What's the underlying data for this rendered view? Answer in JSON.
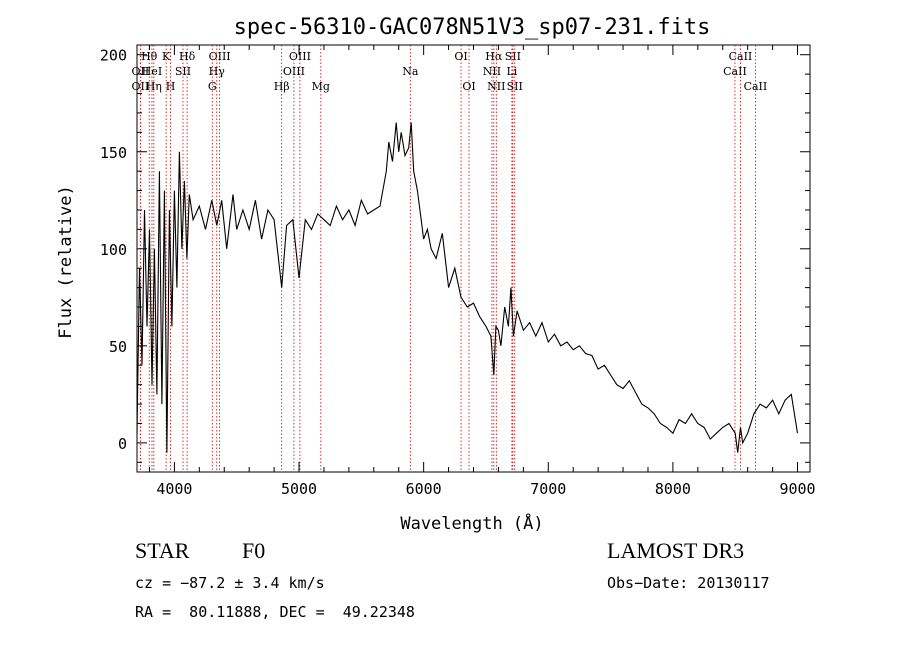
{
  "chart_data": {
    "type": "line",
    "title": "spec-56310-GAC078N51V3_sp07-231.fits",
    "xlabel": "Wavelength (Å)",
    "ylabel": "Flux (relative)",
    "xlim": [
      3700,
      9100
    ],
    "ylim": [
      -15,
      205
    ],
    "xticks": [
      4000,
      5000,
      6000,
      7000,
      8000,
      9000
    ],
    "yticks": [
      0,
      50,
      100,
      150,
      200
    ],
    "grid": false,
    "series": [
      {
        "name": "flux",
        "x": [
          3700,
          3720,
          3740,
          3760,
          3780,
          3800,
          3820,
          3840,
          3860,
          3880,
          3900,
          3920,
          3940,
          3960,
          3980,
          4000,
          4020,
          4040,
          4060,
          4080,
          4100,
          4120,
          4150,
          4200,
          4250,
          4300,
          4340,
          4380,
          4420,
          4470,
          4500,
          4550,
          4600,
          4650,
          4700,
          4750,
          4800,
          4861,
          4900,
          4950,
          5000,
          5050,
          5100,
          5150,
          5200,
          5250,
          5300,
          5350,
          5400,
          5450,
          5500,
          5550,
          5600,
          5650,
          5700,
          5720,
          5750,
          5780,
          5800,
          5820,
          5850,
          5880,
          5900,
          5920,
          5950,
          5980,
          6000,
          6030,
          6060,
          6100,
          6150,
          6200,
          6250,
          6300,
          6350,
          6400,
          6450,
          6500,
          6540,
          6563,
          6580,
          6600,
          6620,
          6650,
          6680,
          6700,
          6720,
          6750,
          6800,
          6850,
          6900,
          6950,
          7000,
          7050,
          7100,
          7150,
          7200,
          7250,
          7300,
          7350,
          7400,
          7450,
          7500,
          7550,
          7600,
          7650,
          7700,
          7750,
          7800,
          7850,
          7900,
          7950,
          8000,
          8050,
          8100,
          8150,
          8200,
          8250,
          8300,
          8350,
          8400,
          8450,
          8500,
          8520,
          8542,
          8560,
          8600,
          8650,
          8700,
          8750,
          8800,
          8850,
          8900,
          8950,
          9000
        ],
        "values": [
          5,
          90,
          40,
          120,
          60,
          110,
          30,
          100,
          25,
          140,
          20,
          130,
          -5,
          120,
          60,
          130,
          80,
          150,
          100,
          135,
          95,
          128,
          115,
          122,
          110,
          125,
          112,
          125,
          100,
          128,
          110,
          120,
          110,
          125,
          105,
          120,
          115,
          80,
          112,
          115,
          85,
          115,
          110,
          118,
          115,
          112,
          122,
          115,
          120,
          112,
          125,
          118,
          120,
          122,
          140,
          155,
          145,
          165,
          150,
          160,
          148,
          152,
          165,
          140,
          130,
          115,
          105,
          110,
          100,
          95,
          108,
          80,
          90,
          75,
          70,
          72,
          65,
          60,
          55,
          35,
          60,
          58,
          50,
          70,
          60,
          80,
          55,
          68,
          58,
          62,
          55,
          62,
          52,
          56,
          50,
          52,
          48,
          50,
          46,
          45,
          38,
          40,
          35,
          30,
          28,
          32,
          26,
          20,
          18,
          15,
          10,
          8,
          5,
          12,
          10,
          15,
          10,
          8,
          2,
          5,
          8,
          10,
          5,
          -5,
          8,
          0,
          5,
          15,
          20,
          18,
          22,
          15,
          22,
          25,
          5
        ]
      }
    ],
    "line_markers": [
      {
        "label": "Hθ",
        "x": 3798,
        "row": 1
      },
      {
        "label": "OII",
        "x": 3727,
        "row": 2
      },
      {
        "label": "HeI",
        "x": 3820,
        "row": 2
      },
      {
        "label": "OII",
        "x": 3727,
        "row": 3
      },
      {
        "label": "Hη",
        "x": 3835,
        "row": 3
      },
      {
        "label": "K",
        "x": 3934,
        "row": 1
      },
      {
        "label": "SII",
        "x": 4069,
        "row": 2
      },
      {
        "label": "H",
        "x": 3969,
        "row": 3
      },
      {
        "label": "Hδ",
        "x": 4102,
        "row": 1
      },
      {
        "label": "OIII",
        "x": 4363,
        "row": 1
      },
      {
        "label": "Hγ",
        "x": 4340,
        "row": 2
      },
      {
        "label": "G",
        "x": 4304,
        "row": 3
      },
      {
        "label": "Hβ",
        "x": 4861,
        "row": 3
      },
      {
        "label": "OIII",
        "x": 5007,
        "row": 1
      },
      {
        "label": "OIII",
        "x": 4959,
        "row": 2
      },
      {
        "label": "Mg",
        "x": 5175,
        "row": 3
      },
      {
        "label": "Na",
        "x": 5893,
        "row": 2
      },
      {
        "label": "OI",
        "x": 6300,
        "row": 1
      },
      {
        "label": "OI",
        "x": 6364,
        "row": 3
      },
      {
        "label": "Hα",
        "x": 6563,
        "row": 1
      },
      {
        "label": "SII",
        "x": 6716,
        "row": 1
      },
      {
        "label": "NII",
        "x": 6548,
        "row": 2
      },
      {
        "label": "Li",
        "x": 6708,
        "row": 2
      },
      {
        "label": "NII",
        "x": 6583,
        "row": 3
      },
      {
        "label": "SII",
        "x": 6731,
        "row": 3
      },
      {
        "label": "CaII",
        "x": 8542,
        "row": 1
      },
      {
        "label": "CaII",
        "x": 8498,
        "row": 2
      },
      {
        "label": "CaII",
        "x": 8662,
        "row": 3
      }
    ]
  },
  "info": {
    "class_label": "STAR",
    "subclass": "F0",
    "survey": "LAMOST DR3",
    "redshift": "cz = −87.2 ± 3.4 km/s",
    "obs_date": "Obs−Date: 20130117",
    "coords": "RA =  80.11888, DEC =  49.22348"
  },
  "colors": {
    "axis": "#000000",
    "spectrum": "#000000",
    "line_marker": "#cc0000"
  }
}
